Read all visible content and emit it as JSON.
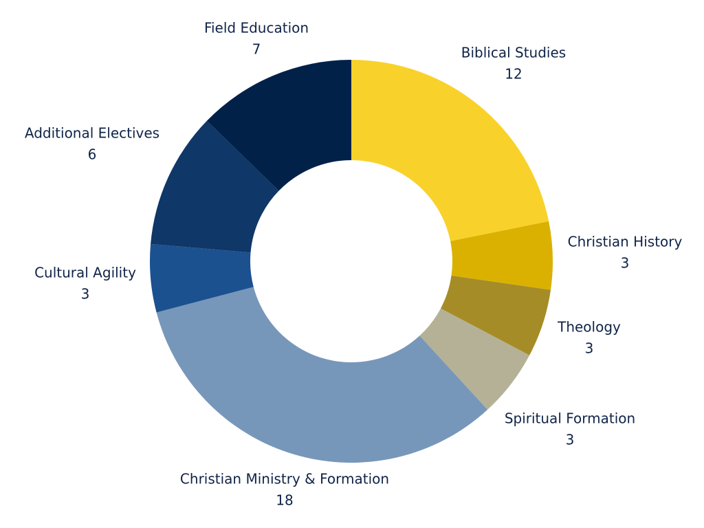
{
  "chart_data": {
    "type": "pie",
    "donut": true,
    "title": "",
    "start_angle_deg": 0,
    "direction": "clockwise",
    "legend": "none",
    "slices": [
      {
        "label": "Biblical Studies",
        "value": 12,
        "color": "#F8D22B"
      },
      {
        "label": "Christian History",
        "value": 3,
        "color": "#DAB100"
      },
      {
        "label": "Theology",
        "value": 3,
        "color": "#A68C27"
      },
      {
        "label": "Spiritual Formation",
        "value": 3,
        "color": "#B4B196"
      },
      {
        "label": "Christian Ministry & Formation",
        "value": 18,
        "color": "#7797BA"
      },
      {
        "label": "Cultural Agility",
        "value": 3,
        "color": "#1C5190"
      },
      {
        "label": "Additional Electives",
        "value": 6,
        "color": "#0F3768"
      },
      {
        "label": "Field Education",
        "value": 7,
        "color": "#012149"
      }
    ]
  }
}
